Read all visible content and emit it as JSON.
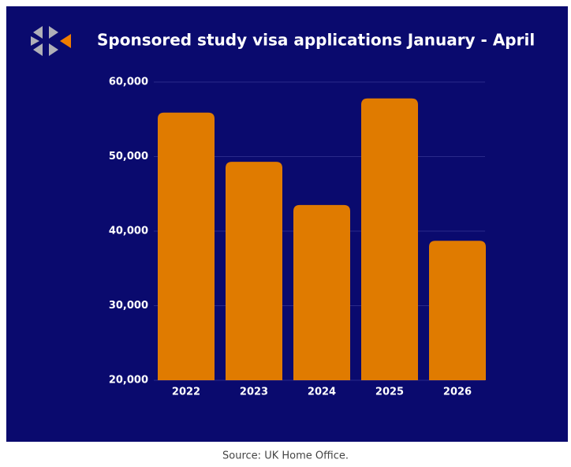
{
  "chart_data": {
    "type": "bar",
    "title": "Sponsored study visa applications January - April",
    "caption": "Source: UK Home Office.",
    "categories": [
      "2022",
      "2023",
      "2024",
      "2025",
      "2026"
    ],
    "values": [
      55900,
      49300,
      43500,
      57800,
      38700
    ],
    "color": "#e07b00",
    "ylim": [
      20000,
      60000
    ],
    "yticks": [
      {
        "value": 20000,
        "label": "20,000"
      },
      {
        "value": 30000,
        "label": "30,000"
      },
      {
        "value": 40000,
        "label": "40,000"
      },
      {
        "value": 50000,
        "label": "50,000"
      },
      {
        "value": 60000,
        "label": "60,000"
      }
    ],
    "grid": true
  }
}
